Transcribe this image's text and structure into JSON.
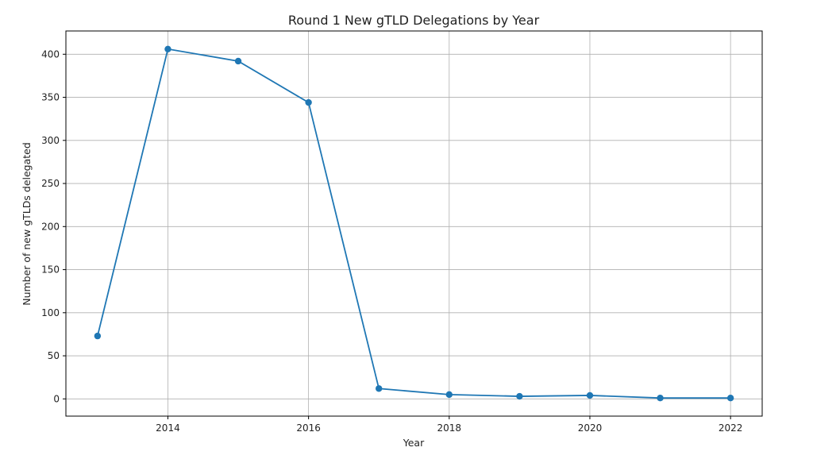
{
  "chart_data": {
    "type": "line",
    "title": "Round 1 New gTLD Delegations by Year",
    "xlabel": "Year",
    "ylabel": "Number of new gTLDs delegated",
    "x": [
      2013,
      2014,
      2015,
      2016,
      2017,
      2018,
      2019,
      2020,
      2021,
      2022
    ],
    "series": [
      {
        "values": [
          73,
          406,
          392,
          344,
          12,
          5,
          3,
          4,
          1,
          1
        ],
        "color": "#1f77b4"
      }
    ],
    "xlim": [
      2012.55,
      2022.45
    ],
    "ylim": [
      -20,
      427
    ],
    "xticks": [
      2014,
      2016,
      2018,
      2020,
      2022
    ],
    "yticks": [
      0,
      50,
      100,
      150,
      200,
      250,
      300,
      350,
      400
    ],
    "grid": true,
    "marker": "circle"
  }
}
